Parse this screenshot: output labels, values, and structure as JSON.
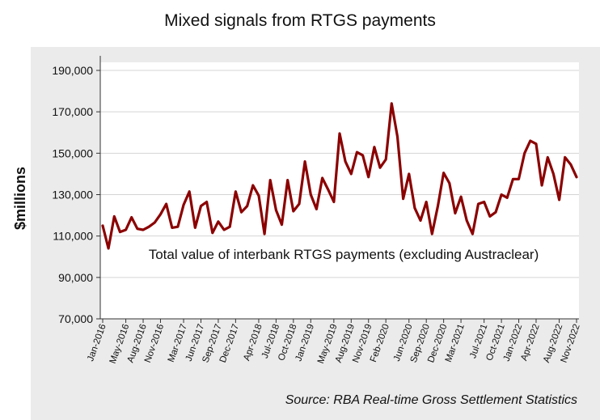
{
  "chart_data": {
    "type": "line",
    "title": "Mixed signals from RTGS payments",
    "ylabel": "$millions",
    "xlabel": "",
    "annotation": "Total value of interbank RTGS payments (excluding Austraclear)",
    "source": "Source: RBA Real-time Gross Settlement Statistics",
    "ylim": [
      70000,
      190000
    ],
    "yticks": [
      "70,000",
      "90,000",
      "110,000",
      "130,000",
      "150,000",
      "170,000",
      "190,000"
    ],
    "ytick_values": [
      70000,
      90000,
      110000,
      130000,
      150000,
      170000,
      190000
    ],
    "xtick_labels": [
      "Jan-2016",
      "May-2016",
      "Aug-2016",
      "Nov-2016",
      "Mar-2017",
      "Jun-2017",
      "Sep-2017",
      "Dec-2017",
      "Apr-2018",
      "Jul-2018",
      "Oct-2018",
      "Jan-2019",
      "May-2019",
      "Aug-2019",
      "Nov-2019",
      "Feb-2020",
      "Jun-2020",
      "Sep-2020",
      "Dec-2020",
      "Mar-2021",
      "Jul-2021",
      "Oct-2021",
      "Jan-2022",
      "Apr-2022",
      "Aug-2022",
      "Nov-2022"
    ],
    "xtick_index": [
      0,
      4,
      7,
      10,
      14,
      17,
      20,
      23,
      27,
      30,
      33,
      36,
      40,
      43,
      46,
      49,
      53,
      56,
      59,
      62,
      66,
      69,
      72,
      75,
      79,
      82
    ],
    "line_color": "#8b0000",
    "plot_background": "#ebebeb",
    "grid": "horizontal",
    "series": [
      {
        "name": "",
        "values": [
          115000,
          104000,
          119500,
          112000,
          113000,
          119000,
          113500,
          113000,
          114500,
          116500,
          120500,
          125500,
          114000,
          114500,
          125000,
          131500,
          114000,
          124500,
          126500,
          111500,
          117000,
          113000,
          114500,
          131500,
          121500,
          124500,
          134500,
          129500,
          111000,
          137000,
          122500,
          115500,
          137000,
          122000,
          125500,
          146000,
          130000,
          123000,
          138000,
          132500,
          126500,
          159500,
          146000,
          140000,
          150500,
          149000,
          138500,
          153000,
          143000,
          147000,
          174000,
          158000,
          128000,
          140000,
          123500,
          117500,
          126500,
          111000,
          124500,
          140500,
          135500,
          121000,
          129000,
          117500,
          111000,
          125500,
          126500,
          119500,
          121500,
          130000,
          128500,
          137500,
          137500,
          150000,
          156000,
          154500,
          134500,
          148000,
          140000,
          127500,
          148000,
          144500,
          138500
        ]
      }
    ]
  }
}
